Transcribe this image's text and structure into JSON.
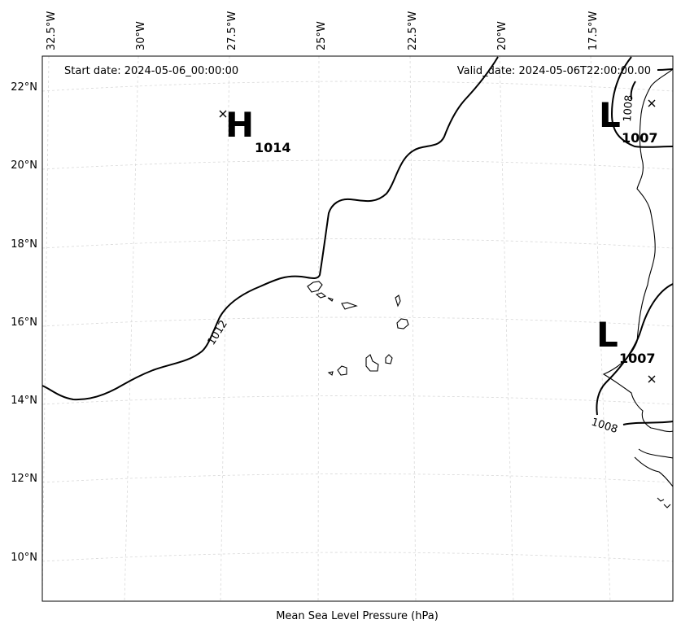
{
  "header": {
    "start_date": "Start date: 2024-05-06_00:00:00",
    "valid_date": "Valid_date: 2024-05-06T22:00:00.00"
  },
  "footer": {
    "caption": "Mean Sea Level Pressure (hPa)"
  },
  "longitude_labels": [
    "32.5°W",
    "30°W",
    "27.5°W",
    "25°W",
    "22.5°W",
    "20°W",
    "17.5°W"
  ],
  "latitude_labels": [
    "22°N",
    "20°N",
    "18°N",
    "16°N",
    "14°N",
    "12°N",
    "10°N"
  ],
  "pressure_centers": [
    {
      "type": "H",
      "value": "1014"
    },
    {
      "type": "L",
      "value": "1007"
    },
    {
      "type": "L",
      "value": "1007"
    }
  ],
  "contour_labels": [
    "1012",
    "1008",
    "1008"
  ]
}
